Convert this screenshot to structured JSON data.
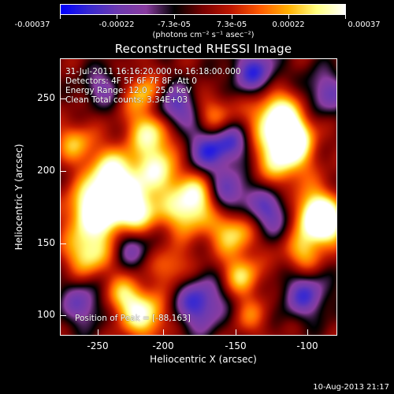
{
  "colorbar": {
    "tick_labels": [
      "-0.00037",
      "-0.00022",
      "-7.3e-05",
      "7.3e-05",
      "0.00022",
      "0.00037"
    ],
    "units": "(photons cm⁻² s⁻¹ asec⁻²)"
  },
  "title": "Reconstructed RHESSI Image",
  "info_lines": [
    "31-Jul-2011 16:16:20.000 to 16:18:00.000",
    "Detectors: 4F 5F 6F 7F 8F, Att 0",
    "Energy Range: 12.0 - 25.0 keV",
    "Clean    Total counts: 3.34E+03"
  ],
  "peak_label": "Position of Peak = [-88,163]",
  "x_axis": {
    "label": "Heliocentric X (arcsec)",
    "ticks": [
      "-250",
      "-200",
      "-150",
      "-100"
    ],
    "range": [
      -275,
      -83
    ]
  },
  "y_axis": {
    "label": "Heliocentric Y (arcsec)",
    "ticks": [
      "100",
      "150",
      "200",
      "250"
    ],
    "range": [
      83,
      275
    ]
  },
  "footer": "10-Aug-2013 21:17",
  "colors": {
    "colormap": [
      "#0000ff",
      "#3a2ad0",
      "#6e3ab0",
      "#8a3ca0",
      "#000000",
      "#7a0000",
      "#c01800",
      "#ff5a00",
      "#ffb000",
      "#ffff80",
      "#ffffff"
    ]
  }
}
